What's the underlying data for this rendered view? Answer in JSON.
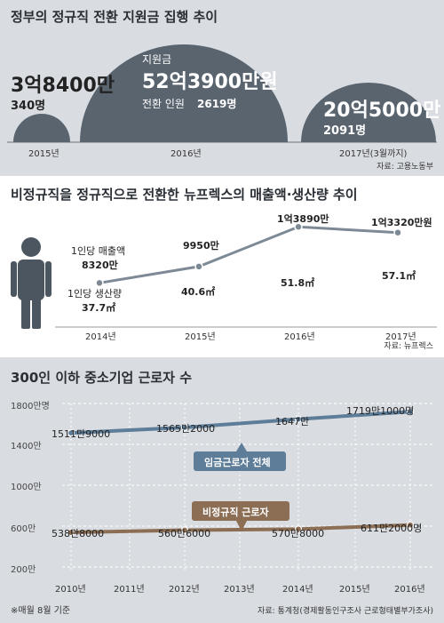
{
  "panel1": {
    "title": "정부의 정규직 전환 지원금 집행 추이",
    "source": "자료: 고용노동부",
    "items": [
      {
        "year": "2015년",
        "amount_main": "3억8400만",
        "people": "340명"
      },
      {
        "year": "2016년",
        "amount_label": "지원금",
        "amount_main": "52억3900만원",
        "people_label": "전환 인원",
        "people": "2619명"
      },
      {
        "year": "2017년(3월까지)",
        "amount_main": "20억5000만",
        "people": "2091명"
      }
    ]
  },
  "panel2": {
    "title": "비정규직을 정규직으로 전환한 뉴프렉스의 매출액·생산량 추이",
    "source": "자료: 뉴프렉스",
    "sales_label": "1인당 매출액",
    "prod_label": "1인당 생산량",
    "years": [
      "2014년",
      "2015년",
      "2016년",
      "2017년"
    ],
    "sales_labels": [
      "8320만",
      "9950만",
      "1억3890만",
      "1억3320만원"
    ],
    "prod_labels": [
      "37.7㎡",
      "40.6㎡",
      "51.8㎡",
      "57.1㎡"
    ]
  },
  "panel3": {
    "title": "300인 이하 중소기업 근로자 수",
    "source": "자료: 통계청(경제활동인구조사 근로형태별부가조사)",
    "footnote": "※매월 8월 기준",
    "y_ticks": [
      "1800만명",
      "1400만",
      "1000만",
      "600만",
      "200만"
    ],
    "years": [
      "2010년",
      "2011년",
      "2012년",
      "2013년",
      "2014년",
      "2015년",
      "2016년"
    ],
    "series1_label": "임금근로자 전체",
    "series2_label": "비정규직 근로자",
    "s1_labels": [
      "1511만9000",
      "1565만2000",
      "1647만",
      "1719만1000명"
    ],
    "s2_labels": [
      "538만8000",
      "560만6000",
      "570만8000",
      "611만2000명"
    ]
  },
  "chart_data": [
    {
      "type": "area",
      "title": "정부의 정규직 전환 지원금 집행 추이",
      "categories": [
        "2015년",
        "2016년",
        "2017년(3월까지)"
      ],
      "series": [
        {
          "name": "지원금",
          "values": [
            384000000,
            5239000000,
            2050000000
          ]
        },
        {
          "name": "전환 인원",
          "values": [
            340,
            2619,
            2091
          ]
        }
      ]
    },
    {
      "type": "bar",
      "title": "비정규직을 정규직으로 전환한 뉴프렉스의 매출액·생산량 추이",
      "categories": [
        "2014년",
        "2015년",
        "2016년",
        "2017년"
      ],
      "series": [
        {
          "name": "1인당 매출액",
          "values": [
            83200000,
            99500000,
            138900000,
            133200000
          ]
        },
        {
          "name": "1인당 생산량",
          "values": [
            37.7,
            40.6,
            51.8,
            57.1
          ]
        }
      ]
    },
    {
      "type": "line",
      "title": "300인 이하 중소기업 근로자 수",
      "x": [
        "2010년",
        "2012년",
        "2014년",
        "2016년"
      ],
      "ylim": [
        200,
        1800
      ],
      "series": [
        {
          "name": "임금근로자 전체",
          "values": [
            1511.9,
            1565.2,
            1647,
            1719.1
          ]
        },
        {
          "name": "비정규직 근로자",
          "values": [
            538.8,
            560.6,
            570.8,
            611.2
          ]
        }
      ]
    }
  ],
  "colors": {
    "panel_bg": "#d9dde2",
    "dome": "#59646f",
    "line_blue": "#5d7d99",
    "line_brown": "#8c6e55",
    "bar_fill": "#ffffff",
    "person": "#4c5660"
  }
}
